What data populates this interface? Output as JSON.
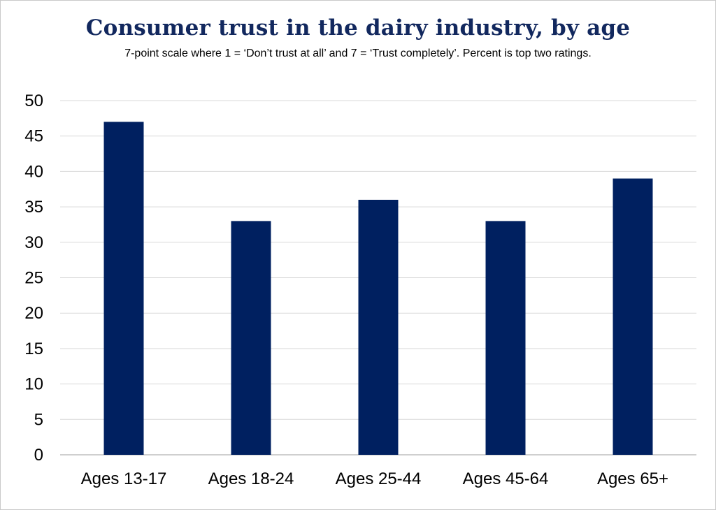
{
  "chart_data": {
    "type": "bar",
    "title": "Consumer trust in the dairy industry, by age",
    "subtitle": "7-point scale where 1 = ‘Don’t trust at all’ and 7 = ‘Trust completely’. Percent is top two ratings.",
    "categories": [
      "Ages 13-17",
      "Ages 18-24",
      "Ages 25-44",
      "Ages 45-64",
      "Ages 65+"
    ],
    "values": [
      47,
      33,
      36,
      33,
      39
    ],
    "ylim": [
      0,
      50
    ],
    "yticks": [
      0,
      5,
      10,
      15,
      20,
      25,
      30,
      35,
      40,
      45,
      50
    ],
    "grid": true,
    "legend": "none",
    "colors": {
      "bar": "#002060",
      "title": "#12285e",
      "grid": "#d9d9d9",
      "axis": "#bfbfbf"
    }
  }
}
